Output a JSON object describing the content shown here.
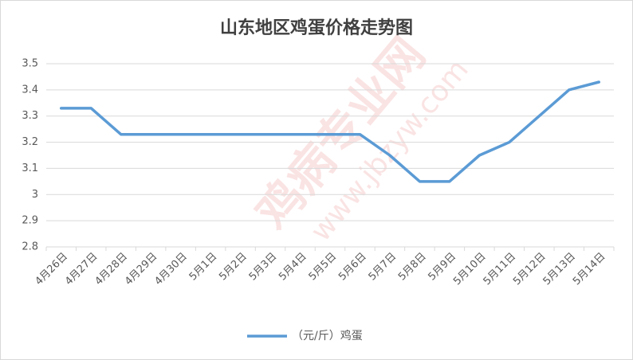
{
  "chart_data": {
    "type": "line",
    "title": "山东地区鸡蛋价格走势图",
    "categories": [
      "4月26日",
      "4月27日",
      "4月28日",
      "4月29日",
      "4月30日",
      "5月1日",
      "5月2日",
      "5月3日",
      "5月4日",
      "5月5日",
      "5月6日",
      "5月7日",
      "5月8日",
      "5月9日",
      "5月10日",
      "5月11日",
      "5月12日",
      "5月13日",
      "5月14日"
    ],
    "series": [
      {
        "name": "（元/斤）鸡蛋",
        "color": "#5b9bd5",
        "values": [
          3.33,
          3.33,
          3.23,
          3.23,
          3.23,
          3.23,
          3.23,
          3.23,
          3.23,
          3.23,
          3.23,
          3.15,
          3.05,
          3.05,
          3.15,
          3.2,
          3.3,
          3.4,
          3.43
        ]
      }
    ],
    "ylim": [
      2.8,
      3.5
    ],
    "yticks": [
      2.8,
      2.9,
      3,
      3.1,
      3.2,
      3.3,
      3.4,
      3.5
    ],
    "grid": true,
    "legend": "bottom"
  },
  "watermark": {
    "name": "鸡病专业网",
    "url": "www.jbzyw.com"
  }
}
